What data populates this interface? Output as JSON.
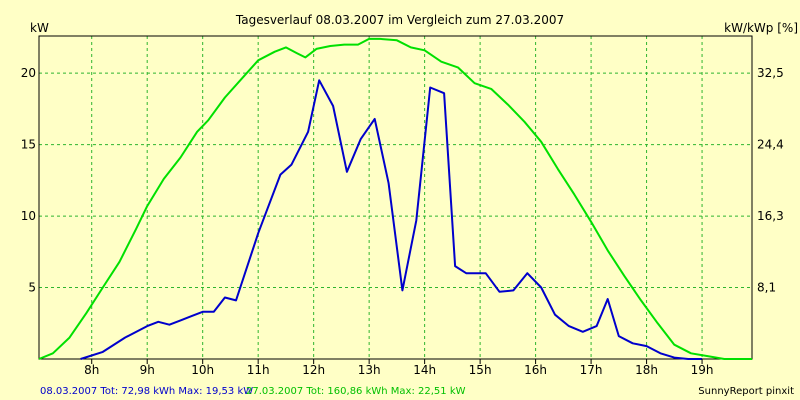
{
  "chart_data": {
    "type": "line",
    "title": "Tagesverlauf 08.03.2007 im Vergleich zum 27.03.2007",
    "ylabel_left": "kW",
    "ylabel_right": "kW/kWp [%]",
    "xlim": [
      7.05,
      19.9
    ],
    "ylim": [
      0,
      22.6
    ],
    "x_ticks": [
      8,
      9,
      10,
      11,
      12,
      13,
      14,
      15,
      16,
      17,
      18,
      19
    ],
    "x_tick_labels": [
      "8h",
      "9h",
      "10h",
      "11h",
      "12h",
      "13h",
      "14h",
      "15h",
      "16h",
      "17h",
      "18h",
      "19h"
    ],
    "y_ticks_left": [
      5,
      10,
      15,
      20
    ],
    "y_tick_labels_left": [
      "5",
      "10",
      "15",
      "20"
    ],
    "y_ticks_right": [
      5,
      10,
      15,
      20
    ],
    "y_tick_labels_right": [
      "8,1",
      "16,3",
      "24,4",
      "32,5"
    ],
    "grid": true,
    "grid_style": "dashed",
    "series": [
      {
        "name": "08.03.2007",
        "color": "#0000cc",
        "x": [
          7.8,
          8.2,
          8.6,
          9.0,
          9.2,
          9.4,
          9.6,
          9.8,
          10.0,
          10.2,
          10.4,
          10.6,
          11.0,
          11.4,
          11.6,
          11.9,
          12.1,
          12.35,
          12.6,
          12.85,
          13.1,
          13.35,
          13.6,
          13.85,
          14.1,
          14.35,
          14.55,
          14.75,
          15.1,
          15.35,
          15.6,
          15.85,
          16.1,
          16.35,
          16.6,
          16.85,
          17.1,
          17.3,
          17.5,
          17.75,
          18.0,
          18.25,
          18.5,
          18.75,
          19.0
        ],
        "y": [
          0.0,
          0.5,
          1.5,
          2.3,
          2.6,
          2.4,
          2.7,
          3.0,
          3.3,
          3.3,
          4.3,
          4.1,
          8.8,
          12.9,
          13.6,
          15.9,
          19.5,
          17.7,
          13.1,
          15.4,
          16.8,
          12.3,
          4.8,
          9.7,
          19.0,
          18.6,
          6.5,
          6.0,
          6.0,
          4.7,
          4.8,
          6.0,
          5.0,
          3.1,
          2.3,
          1.9,
          2.3,
          4.2,
          1.6,
          1.1,
          0.9,
          0.4,
          0.1,
          0.0,
          0.0
        ],
        "footer": "08.03.2007 Tot: 72,98 kWh Max: 19,53 kW"
      },
      {
        "name": "27.03.2007",
        "color": "#00e000",
        "x": [
          7.05,
          7.3,
          7.6,
          7.9,
          8.2,
          8.5,
          8.8,
          9.0,
          9.3,
          9.6,
          9.9,
          10.1,
          10.4,
          10.7,
          11.0,
          11.3,
          11.5,
          11.7,
          11.85,
          12.05,
          12.3,
          12.55,
          12.8,
          13.0,
          13.2,
          13.5,
          13.75,
          14.0,
          14.3,
          14.6,
          14.9,
          15.2,
          15.5,
          15.8,
          16.1,
          16.4,
          16.7,
          17.0,
          17.3,
          17.6,
          17.9,
          18.2,
          18.5,
          18.8,
          19.1,
          19.4,
          19.7,
          19.9
        ],
        "y": [
          0.0,
          0.4,
          1.5,
          3.2,
          5.0,
          6.8,
          9.1,
          10.7,
          12.6,
          14.1,
          15.9,
          16.7,
          18.3,
          19.6,
          20.9,
          21.5,
          21.8,
          21.4,
          21.1,
          21.7,
          21.9,
          22.0,
          22.0,
          22.4,
          22.4,
          22.3,
          21.8,
          21.6,
          20.8,
          20.4,
          19.3,
          18.9,
          17.8,
          16.6,
          15.2,
          13.3,
          11.5,
          9.6,
          7.6,
          5.8,
          4.1,
          2.5,
          1.0,
          0.4,
          0.2,
          0.0,
          0.0,
          0.0
        ],
        "footer": "27.03.2007 Tot: 160,86 kWh Max: 22,51 kW"
      }
    ],
    "credit": "SunnyReport pinxit"
  },
  "colors": {
    "background": "#ffffc6",
    "grid": "#2fb52f",
    "axis": "#000000"
  }
}
